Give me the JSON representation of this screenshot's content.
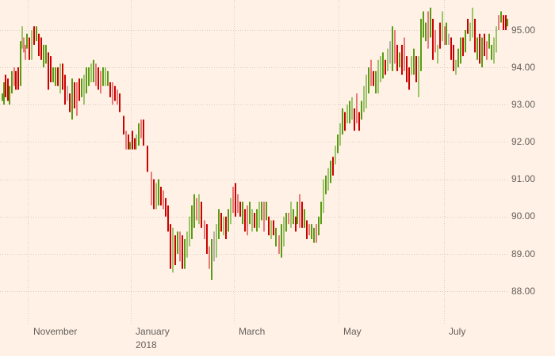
{
  "chart_data": {
    "type": "ohlc",
    "title": "",
    "xlabel": "",
    "ylabel": "",
    "ylim": [
      87.6,
      95.8
    ],
    "grid": true,
    "legend": "none",
    "y_ticks": [
      "88.00",
      "89.00",
      "90.00",
      "91.00",
      "92.00",
      "93.00",
      "94.00",
      "95.00"
    ],
    "x_ticks": [
      {
        "label": "November",
        "sub": ""
      },
      {
        "label": "January",
        "sub": "2018"
      },
      {
        "label": "March",
        "sub": ""
      },
      {
        "label": "May",
        "sub": ""
      },
      {
        "label": "July",
        "sub": ""
      }
    ],
    "colors": {
      "up": "#5a9b14",
      "down": "#cc0000",
      "up_light": "#9cc56a",
      "down_light": "#e87a7a",
      "grid": "#d9cfc6",
      "background": "#fff1e5",
      "text": "#66605c"
    },
    "bars": [
      [
        2,
        93.3,
        93.1,
        "u"
      ],
      [
        4,
        93.6,
        93.0,
        "u"
      ],
      [
        6,
        93.8,
        93.2,
        "d"
      ],
      [
        9,
        93.7,
        93.1,
        "d"
      ],
      [
        11,
        93.5,
        93.0,
        "u"
      ],
      [
        14,
        93.9,
        93.3,
        "u"
      ],
      [
        17,
        94.0,
        93.5,
        "dl"
      ],
      [
        19,
        93.9,
        93.4,
        "d"
      ],
      [
        22,
        94.0,
        93.4,
        "d"
      ],
      [
        25,
        94.7,
        93.5,
        "u"
      ],
      [
        27,
        95.1,
        94.5,
        "ul"
      ],
      [
        29,
        94.8,
        94.4,
        "dl"
      ],
      [
        31,
        94.6,
        94.2,
        "dl"
      ],
      [
        33,
        94.9,
        94.5,
        "u"
      ],
      [
        36,
        94.8,
        94.2,
        "d"
      ],
      [
        39,
        95.0,
        94.2,
        "ul"
      ],
      [
        42,
        95.1,
        94.6,
        "d"
      ],
      [
        45,
        95.1,
        94.7,
        "u"
      ],
      [
        48,
        94.9,
        94.3,
        "d"
      ],
      [
        51,
        94.8,
        94.2,
        "d"
      ],
      [
        54,
        94.6,
        94.0,
        "u"
      ],
      [
        57,
        94.6,
        94.1,
        "u"
      ],
      [
        60,
        94.4,
        93.4,
        "d"
      ],
      [
        63,
        94.3,
        93.6,
        "d"
      ],
      [
        66,
        94.0,
        93.6,
        "u"
      ],
      [
        69,
        94.0,
        93.5,
        "u"
      ],
      [
        72,
        94.0,
        93.5,
        "d"
      ],
      [
        75,
        94.1,
        93.3,
        "ul"
      ],
      [
        78,
        94.1,
        93.4,
        "d"
      ],
      [
        81,
        93.8,
        93.0,
        "d"
      ],
      [
        84,
        93.5,
        93.1,
        "gray"
      ],
      [
        87,
        93.3,
        92.8,
        "d"
      ],
      [
        90,
        93.7,
        92.6,
        "u"
      ],
      [
        93,
        93.6,
        92.9,
        "d"
      ],
      [
        96,
        93.6,
        92.7,
        "dl"
      ],
      [
        99,
        93.7,
        93.1,
        "d"
      ],
      [
        102,
        93.7,
        93.2,
        "u"
      ],
      [
        105,
        93.8,
        93.0,
        "ul"
      ],
      [
        108,
        94.0,
        93.3,
        "u"
      ],
      [
        111,
        94.0,
        93.5,
        "u"
      ],
      [
        114,
        94.1,
        93.6,
        "ul"
      ],
      [
        117,
        94.2,
        93.6,
        "u"
      ],
      [
        120,
        94.1,
        93.5,
        "dl"
      ],
      [
        123,
        94.0,
        93.4,
        "d"
      ],
      [
        126,
        93.9,
        93.3,
        "dl"
      ],
      [
        129,
        94.0,
        93.5,
        "u"
      ],
      [
        132,
        94.0,
        93.5,
        "ul"
      ],
      [
        135,
        93.9,
        93.5,
        "u"
      ],
      [
        138,
        93.6,
        93.2,
        "d"
      ],
      [
        141,
        93.6,
        93.0,
        "dl"
      ],
      [
        144,
        93.5,
        93.1,
        "d"
      ],
      [
        147,
        93.4,
        93.0,
        "dl"
      ],
      [
        150,
        93.3,
        92.8,
        "d"
      ],
      [
        155,
        92.7,
        92.2,
        "d"
      ],
      [
        158,
        92.3,
        91.8,
        "dl"
      ],
      [
        161,
        92.2,
        91.8,
        "d"
      ],
      [
        163,
        92.0,
        91.8,
        "u"
      ],
      [
        166,
        92.3,
        91.8,
        "d"
      ],
      [
        169,
        92.1,
        91.8,
        "d"
      ],
      [
        171,
        92.2,
        91.8,
        "ul"
      ],
      [
        174,
        92.5,
        91.9,
        "u"
      ],
      [
        177,
        92.6,
        92.1,
        "dl"
      ],
      [
        180,
        92.6,
        91.9,
        "d"
      ],
      [
        185,
        91.9,
        91.2,
        "d"
      ],
      [
        190,
        91.2,
        90.3,
        "dl"
      ],
      [
        193,
        91.0,
        90.2,
        "d"
      ],
      [
        196,
        90.9,
        90.2,
        "ul"
      ],
      [
        199,
        91.0,
        90.3,
        "u"
      ],
      [
        202,
        90.8,
        90.3,
        "d"
      ],
      [
        205,
        90.7,
        90.2,
        "dl"
      ],
      [
        208,
        90.5,
        90.0,
        "d"
      ],
      [
        211,
        90.3,
        89.6,
        "d"
      ],
      [
        214,
        89.8,
        88.6,
        "d"
      ],
      [
        217,
        89.7,
        88.5,
        "ul"
      ],
      [
        220,
        89.5,
        88.7,
        "d"
      ],
      [
        223,
        89.6,
        89.0,
        "u"
      ],
      [
        226,
        89.6,
        88.8,
        "dl"
      ],
      [
        229,
        89.5,
        88.6,
        "d"
      ],
      [
        232,
        89.4,
        88.6,
        "u"
      ],
      [
        235,
        89.6,
        88.9,
        "ul"
      ],
      [
        238,
        90.0,
        89.2,
        "ul"
      ],
      [
        241,
        90.3,
        89.4,
        "u"
      ],
      [
        244,
        90.6,
        89.7,
        "u"
      ],
      [
        247,
        90.5,
        89.9,
        "dl"
      ],
      [
        250,
        90.6,
        89.8,
        "ul"
      ],
      [
        253,
        90.4,
        89.7,
        "d"
      ],
      [
        257,
        89.9,
        89.4,
        "dl"
      ],
      [
        260,
        89.8,
        89.0,
        "d"
      ],
      [
        263,
        89.2,
        88.6,
        "dl"
      ],
      [
        266,
        89.4,
        88.3,
        "u"
      ],
      [
        269,
        89.6,
        88.8,
        "gray"
      ],
      [
        272,
        89.8,
        88.9,
        "ul"
      ],
      [
        275,
        90.2,
        89.4,
        "u"
      ],
      [
        278,
        90.1,
        89.6,
        "d"
      ],
      [
        281,
        90.0,
        89.5,
        "ul"
      ],
      [
        284,
        90.0,
        89.4,
        "d"
      ],
      [
        287,
        90.2,
        89.6,
        "u"
      ],
      [
        290,
        90.5,
        89.8,
        "ul"
      ],
      [
        293,
        90.8,
        90.1,
        "dl"
      ],
      [
        296,
        90.9,
        90.0,
        "d"
      ],
      [
        299,
        90.6,
        90.1,
        "dl"
      ],
      [
        302,
        90.4,
        90.0,
        "d"
      ],
      [
        305,
        90.4,
        89.8,
        "u"
      ],
      [
        308,
        90.2,
        89.6,
        "d"
      ],
      [
        311,
        90.3,
        89.5,
        "dl"
      ],
      [
        314,
        90.4,
        89.8,
        "u"
      ],
      [
        317,
        90.2,
        89.6,
        "ul"
      ],
      [
        320,
        90.1,
        89.7,
        "d"
      ],
      [
        323,
        90.2,
        89.6,
        "u"
      ],
      [
        326,
        90.4,
        89.7,
        "ul"
      ],
      [
        329,
        90.4,
        89.9,
        "u"
      ],
      [
        332,
        90.4,
        89.6,
        "dl"
      ],
      [
        335,
        90.4,
        89.9,
        "u"
      ],
      [
        338,
        90.0,
        89.5,
        "d"
      ],
      [
        341,
        89.9,
        89.4,
        "ul"
      ],
      [
        344,
        89.9,
        89.5,
        "d"
      ],
      [
        347,
        89.7,
        89.2,
        "u"
      ],
      [
        351,
        89.5,
        89.0,
        "dl"
      ],
      [
        354,
        89.8,
        88.9,
        "u"
      ],
      [
        357,
        90.0,
        89.2,
        "ul"
      ],
      [
        360,
        90.1,
        89.6,
        "u"
      ],
      [
        363,
        90.1,
        89.8,
        "dl"
      ],
      [
        366,
        90.4,
        89.7,
        "ul"
      ],
      [
        369,
        90.2,
        89.8,
        "u"
      ],
      [
        372,
        90.0,
        89.6,
        "d"
      ],
      [
        374,
        90.4,
        89.8,
        "u"
      ],
      [
        377,
        90.6,
        89.7,
        "dl"
      ],
      [
        380,
        90.4,
        89.7,
        "d"
      ],
      [
        383,
        90.2,
        89.7,
        "u"
      ],
      [
        386,
        89.9,
        89.4,
        "d"
      ],
      [
        389,
        89.8,
        89.5,
        "dl"
      ],
      [
        392,
        89.8,
        89.4,
        "u"
      ],
      [
        395,
        89.7,
        89.3,
        "u"
      ],
      [
        398,
        89.8,
        89.3,
        "dl"
      ],
      [
        401,
        90.0,
        89.5,
        "u"
      ],
      [
        404,
        90.4,
        89.8,
        "u"
      ],
      [
        407,
        91.0,
        90.1,
        "ul"
      ],
      [
        410,
        91.1,
        90.6,
        "u"
      ],
      [
        413,
        91.3,
        90.7,
        "ul"
      ],
      [
        416,
        91.5,
        90.9,
        "u"
      ],
      [
        419,
        91.6,
        91.1,
        "d"
      ],
      [
        422,
        91.9,
        91.4,
        "ul"
      ],
      [
        425,
        92.2,
        91.7,
        "u"
      ],
      [
        428,
        92.5,
        91.9,
        "ul"
      ],
      [
        431,
        92.9,
        92.2,
        "u"
      ],
      [
        434,
        92.8,
        92.3,
        "d"
      ],
      [
        437,
        93.0,
        92.5,
        "ul"
      ],
      [
        440,
        93.1,
        92.5,
        "u"
      ],
      [
        443,
        93.2,
        92.6,
        "ul"
      ],
      [
        446,
        92.9,
        92.3,
        "d"
      ],
      [
        449,
        93.3,
        92.5,
        "dl"
      ],
      [
        452,
        92.8,
        92.3,
        "d"
      ],
      [
        455,
        93.1,
        92.6,
        "u"
      ],
      [
        458,
        93.5,
        92.8,
        "ul"
      ],
      [
        461,
        93.8,
        92.9,
        "ul"
      ],
      [
        464,
        94.0,
        93.3,
        "u"
      ],
      [
        467,
        94.2,
        93.5,
        "dl"
      ],
      [
        470,
        93.9,
        93.5,
        "d"
      ],
      [
        473,
        93.9,
        93.3,
        "u"
      ],
      [
        476,
        94.2,
        93.3,
        "ul"
      ],
      [
        479,
        94.3,
        93.6,
        "ul"
      ],
      [
        482,
        94.4,
        93.7,
        "u"
      ],
      [
        485,
        94.2,
        93.8,
        "d"
      ],
      [
        488,
        94.5,
        93.9,
        "ul"
      ],
      [
        491,
        94.7,
        94.1,
        "gray"
      ],
      [
        494,
        95.1,
        93.9,
        "u"
      ],
      [
        497,
        95.0,
        94.1,
        "dl"
      ],
      [
        500,
        94.6,
        93.9,
        "d"
      ],
      [
        503,
        94.4,
        94.0,
        "u"
      ],
      [
        506,
        94.6,
        93.8,
        "d"
      ],
      [
        509,
        94.8,
        93.9,
        "dl"
      ],
      [
        512,
        94.3,
        93.6,
        "d"
      ],
      [
        515,
        94.0,
        93.4,
        "d"
      ],
      [
        518,
        94.3,
        93.8,
        "ul"
      ],
      [
        521,
        94.5,
        93.8,
        "u"
      ],
      [
        524,
        94.3,
        93.6,
        "d"
      ],
      [
        527,
        94.3,
        93.2,
        "ul"
      ],
      [
        530,
        95.3,
        93.9,
        "u"
      ],
      [
        533,
        95.5,
        94.8,
        "u"
      ],
      [
        536,
        95.2,
        94.7,
        "u"
      ],
      [
        539,
        95.5,
        94.5,
        "dl"
      ],
      [
        542,
        95.6,
        94.8,
        "u"
      ],
      [
        545,
        95.3,
        94.2,
        "d"
      ],
      [
        548,
        95.0,
        94.4,
        "dl"
      ],
      [
        551,
        94.6,
        94.1,
        "ul"
      ],
      [
        554,
        95.2,
        94.5,
        "d"
      ],
      [
        557,
        95.5,
        94.7,
        "ul"
      ],
      [
        560,
        95.1,
        94.6,
        "dl"
      ],
      [
        562,
        95.2,
        94.6,
        "u"
      ],
      [
        565,
        94.9,
        94.6,
        "gray"
      ],
      [
        568,
        94.8,
        94.2,
        "d"
      ],
      [
        571,
        94.6,
        93.9,
        "d"
      ],
      [
        574,
        94.2,
        93.8,
        "ul"
      ],
      [
        577,
        94.5,
        94.0,
        "u"
      ],
      [
        580,
        94.8,
        94.1,
        "u"
      ],
      [
        583,
        94.8,
        94.3,
        "d"
      ],
      [
        586,
        95.0,
        94.4,
        "u"
      ],
      [
        589,
        95.3,
        94.9,
        "d"
      ],
      [
        592,
        95.2,
        94.7,
        "ul"
      ],
      [
        595,
        95.6,
        94.8,
        "ul"
      ],
      [
        598,
        95.3,
        94.4,
        "d"
      ],
      [
        601,
        94.8,
        94.2,
        "u"
      ],
      [
        604,
        94.9,
        94.1,
        "d"
      ],
      [
        607,
        94.8,
        94.0,
        "u"
      ],
      [
        610,
        94.9,
        94.3,
        "d"
      ],
      [
        613,
        94.7,
        94.2,
        "dl"
      ],
      [
        616,
        94.9,
        94.5,
        "u"
      ],
      [
        619,
        94.6,
        94.2,
        "u"
      ],
      [
        622,
        94.8,
        94.1,
        "ul"
      ],
      [
        625,
        95.1,
        94.4,
        "ul"
      ],
      [
        628,
        95.4,
        95.0,
        "dl"
      ],
      [
        631,
        95.5,
        95.2,
        "u"
      ],
      [
        634,
        95.4,
        95.0,
        "d"
      ],
      [
        637,
        95.4,
        95.0,
        "d"
      ],
      [
        639,
        95.3,
        95.1,
        "u"
      ]
    ]
  },
  "y_axis_labels": [
    "95.00",
    "94.00",
    "93.00",
    "92.00",
    "91.00",
    "90.00",
    "89.00",
    "88.00"
  ],
  "x_axis_labels": [
    "November",
    "January",
    "2018",
    "March",
    "May",
    "July"
  ]
}
